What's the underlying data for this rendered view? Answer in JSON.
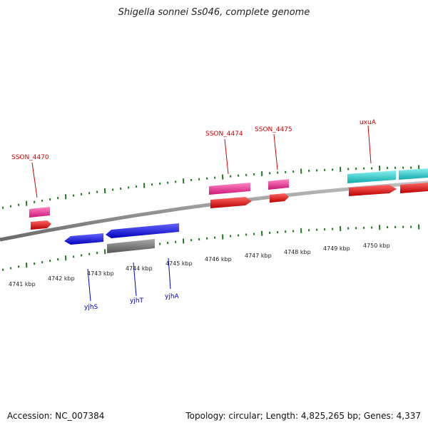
{
  "title": "Shigella sonnei Ss046, complete genome",
  "footer": {
    "accession": "Accession: NC_007384",
    "summary": "Topology: circular; Length: 4,825,265 bp; Genes: 4,337"
  },
  "colors": {
    "backbone": "#8c8c8c",
    "tick": "#1f7a1f",
    "label_forward": "#cc0000",
    "label_reverse": "#0000cc",
    "pink": "#ee2288",
    "red": "#ee0000",
    "cyan": "#22cccc",
    "blue": "#1111ee",
    "gray": "#777777"
  },
  "scale_labels": [
    "4741 kbp",
    "4742 kbp",
    "4743 kbp",
    "4744 kbp",
    "4745 kbp",
    "4746 kbp",
    "4747 kbp",
    "4748 kbp",
    "4749 kbp",
    "4750 kbp"
  ],
  "gene_labels": {
    "forward": [
      "SSON_4470",
      "SSON_4474",
      "SSON_4475",
      "uxuA"
    ],
    "reverse": [
      "yjhS",
      "yjhT",
      "yjhA"
    ]
  }
}
